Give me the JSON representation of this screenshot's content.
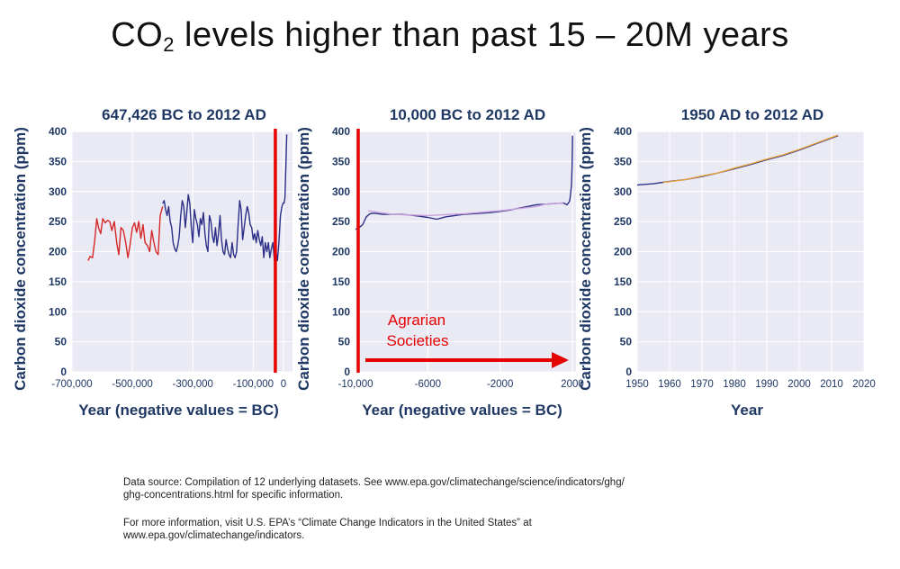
{
  "slide": {
    "title_main": "CO",
    "title_sub": "2",
    "title_rest": " levels higher than past 15 – 20M years"
  },
  "footnotes": {
    "source_line1": "Data source: Compilation of 12 underlying datasets. See www.epa.gov/climatechange/science/indicators/ghg/",
    "source_line2": "ghg-concentrations.html for specific information.",
    "info_line1": "For more information, visit U.S. EPA’s “Climate Change Indicators in the United States” at",
    "info_line2": "www.epa.gov/climatechange/indicators."
  },
  "colors": {
    "panel_bg": "#eaeaf4",
    "axis_text": "#1f3864",
    "red_series": "#d62728",
    "blue_series": "#2c2f88",
    "annotation_red": "#e60000"
  },
  "chart_data": [
    {
      "type": "line",
      "title": "647,426 BC to 2012 AD",
      "xlabel": "Year (negative values = BC)",
      "ylabel": "Carbon dioxide concentration (ppm)",
      "xlim": [
        -700000,
        30000
      ],
      "ylim": [
        0,
        400
      ],
      "xticks": [
        -700000,
        -500000,
        -300000,
        -100000,
        0
      ],
      "xtick_labels": [
        "-700,000",
        "-500,000",
        "-300,000",
        "-100,000",
        "0"
      ],
      "yticks": [
        0,
        50,
        100,
        150,
        200,
        250,
        300,
        350,
        400
      ],
      "grid": true,
      "series": [
        {
          "color": "#d62728",
          "x": [
            -647000,
            -640000,
            -632000,
            -625000,
            -618000,
            -612000,
            -605000,
            -598000,
            -590000,
            -582000,
            -575000,
            -568000,
            -560000,
            -552000,
            -545000,
            -538000,
            -530000,
            -522000,
            -515000,
            -508000,
            -500000,
            -493000,
            -486000,
            -479000,
            -472000,
            -465000,
            -458000,
            -450000,
            -443000,
            -436000,
            -429000,
            -422000,
            -415000,
            -408000,
            -400000
          ],
          "y": [
            185,
            192,
            190,
            218,
            255,
            240,
            230,
            255,
            248,
            252,
            250,
            235,
            250,
            215,
            195,
            240,
            235,
            215,
            190,
            210,
            240,
            248,
            232,
            250,
            222,
            245,
            215,
            210,
            200,
            235,
            215,
            200,
            195,
            260,
            275
          ]
        },
        {
          "color": "#2c2f88",
          "x": [
            -400000,
            -395000,
            -390000,
            -385000,
            -380000,
            -375000,
            -370000,
            -365000,
            -360000,
            -355000,
            -350000,
            -345000,
            -340000,
            -335000,
            -330000,
            -325000,
            -320000,
            -315000,
            -310000,
            -305000,
            -300000,
            -295000,
            -290000,
            -285000,
            -280000,
            -275000,
            -270000,
            -265000,
            -260000,
            -255000,
            -250000,
            -245000,
            -240000,
            -235000,
            -230000,
            -225000,
            -220000,
            -215000,
            -210000,
            -205000,
            -200000,
            -195000,
            -190000,
            -185000,
            -180000,
            -175000,
            -170000,
            -165000,
            -160000,
            -155000,
            -150000,
            -145000,
            -140000,
            -135000,
            -130000,
            -125000,
            -120000,
            -115000,
            -110000,
            -105000,
            -100000,
            -95000,
            -90000,
            -85000,
            -80000,
            -75000,
            -70000,
            -65000,
            -60000,
            -55000,
            -50000,
            -45000,
            -40000,
            -35000,
            -30000,
            -25000,
            -20000,
            -15000,
            -10000,
            -5000,
            0
          ],
          "y": [
            280,
            285,
            270,
            260,
            275,
            250,
            240,
            215,
            205,
            200,
            210,
            225,
            260,
            285,
            275,
            240,
            265,
            295,
            280,
            240,
            215,
            270,
            255,
            245,
            225,
            255,
            245,
            265,
            230,
            210,
            200,
            260,
            250,
            225,
            215,
            240,
            210,
            230,
            260,
            220,
            200,
            195,
            220,
            205,
            195,
            190,
            215,
            195,
            190,
            200,
            245,
            285,
            270,
            220,
            240,
            260,
            275,
            265,
            245,
            240,
            220,
            230,
            215,
            235,
            220,
            210,
            225,
            190,
            215,
            200,
            215,
            190,
            205,
            215,
            185,
            200,
            185,
            215,
            260,
            275,
            282
          ]
        },
        {
          "color": "#2c2f88",
          "x": [
            2000,
            5000,
            8000,
            11000
          ],
          "y": [
            280,
            290,
            340,
            395
          ]
        }
      ]
    },
    {
      "type": "line",
      "title": "10,000 BC to 2012 AD",
      "xlabel": "Year (negative values = BC)",
      "ylabel": "Carbon dioxide concentration (ppm)",
      "xlim": [
        -10000,
        2200
      ],
      "ylim": [
        0,
        400
      ],
      "xticks": [
        -10000,
        -6000,
        -2000,
        2000
      ],
      "xtick_labels": [
        "-10,000",
        "-6000",
        "-2000",
        "2000"
      ],
      "yticks": [
        0,
        50,
        100,
        150,
        200,
        250,
        300,
        350,
        400
      ],
      "grid": true,
      "annotation": "Agrarian Societies",
      "annotation_line1": "Agrarian",
      "annotation_line2": "Societies",
      "series": [
        {
          "color": "#2c2f88",
          "x": [
            -10000,
            -9800,
            -9600,
            -9400,
            -9200,
            -9000,
            -8500,
            -8000,
            -7500,
            -7000,
            -6500,
            -6000,
            -5500,
            -5000,
            -4500,
            -4000,
            -3500,
            -3000,
            -2500,
            -2000,
            -1500,
            -1000,
            -500,
            0,
            500,
            1000,
            1500,
            1700,
            1800,
            1850,
            1900,
            1950,
            1980,
            2012
          ],
          "y": [
            237,
            240,
            245,
            258,
            263,
            264,
            262,
            262,
            262,
            261,
            259,
            257,
            254,
            258,
            260,
            262,
            263,
            264,
            265,
            267,
            269,
            272,
            275,
            278,
            279,
            280,
            281,
            278,
            282,
            285,
            296,
            311,
            339,
            393
          ]
        },
        {
          "color": "#c9a0dc",
          "x": [
            -9300,
            -8000,
            -6000,
            -4000,
            -2000,
            0,
            500,
            1000,
            1500
          ],
          "y": [
            268,
            262,
            260,
            263,
            268,
            275,
            279,
            280,
            281
          ]
        }
      ]
    },
    {
      "type": "line",
      "title": "1950 AD to 2012 AD",
      "xlabel": "Year",
      "ylabel": "Carbon dioxide concentration (ppm)",
      "xlim": [
        1950,
        2020
      ],
      "ylim": [
        0,
        400
      ],
      "xticks": [
        1950,
        1960,
        1970,
        1980,
        1990,
        2000,
        2010,
        2020
      ],
      "xtick_labels": [
        "1950",
        "1960",
        "1970",
        "1980",
        "1990",
        "2000",
        "2010",
        "2020"
      ],
      "yticks": [
        0,
        50,
        100,
        150,
        200,
        250,
        300,
        350,
        400
      ],
      "grid": true,
      "series": [
        {
          "color": "#2c2f88",
          "x": [
            1950,
            1955,
            1960,
            1965,
            1970,
            1975,
            1980,
            1985,
            1990,
            1995,
            2000,
            2005,
            2010,
            2012
          ],
          "y": [
            311,
            313,
            317,
            320,
            325,
            331,
            338,
            345,
            353,
            360,
            369,
            379,
            389,
            393
          ]
        },
        {
          "color": "#e8a33d",
          "x": [
            1958,
            1965,
            1970,
            1975,
            1980,
            1985,
            1990,
            1995,
            2000,
            2005,
            2010,
            2012
          ],
          "y": [
            315,
            320,
            326,
            331,
            339,
            346,
            354,
            361,
            370,
            380,
            390,
            394
          ]
        }
      ]
    }
  ]
}
